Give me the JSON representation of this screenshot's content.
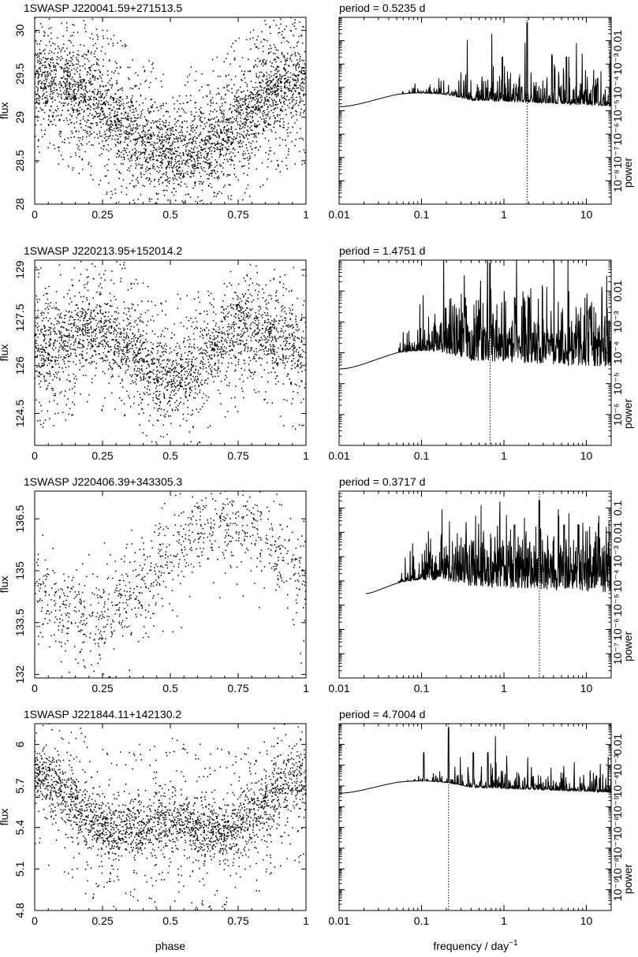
{
  "figure": {
    "xlabel_left": "phase",
    "xlabel_right": "frequency / day",
    "xlabel_right_sup": "−1",
    "period_prefix": "period =",
    "ylabel_left": "flux",
    "ylabel_right": "power"
  },
  "chart_data": [
    {
      "type": "scatter",
      "title": "1SWASP J220041.59+271513.5",
      "xlabel": "",
      "ylabel": "flux",
      "xlim": [
        0,
        1
      ],
      "ylim": [
        28,
        30.15
      ],
      "xticks": [
        0,
        0.25,
        0.5,
        0.75,
        1
      ],
      "xtick_labels": [
        "0",
        "0.25",
        "0.5",
        "0.75",
        "1"
      ],
      "yticks": [
        28,
        28.5,
        29,
        29.5,
        30
      ],
      "ytick_labels": [
        "28",
        "28.5",
        "29",
        "29.5",
        "30"
      ],
      "n_points": 3600,
      "model": {
        "mean": 29.02,
        "amp1": 0.42,
        "phase1": 0.53,
        "amp2": 0.0,
        "scatter": 0.25,
        "outlier_frac": 0.25
      },
      "point_density": "sample"
    },
    {
      "type": "line",
      "title": "",
      "period": "0.5235 d",
      "xscale": "log",
      "yscale": "log",
      "xlim": [
        0.01,
        20
      ],
      "ylim": [
        1e-09,
        0.1
      ],
      "xticks": [
        0.01,
        0.1,
        1,
        10
      ],
      "xtick_labels": [
        "0.01",
        "0.1",
        "1",
        "10"
      ],
      "yticks": [
        1e-08,
        1e-07,
        1e-06,
        1e-05,
        0.0001,
        0.001,
        0.01
      ],
      "ytick_labels": [
        "10⁻⁸",
        "10⁻⁷",
        "10⁻⁶",
        "10⁻⁵",
        "10⁻⁴",
        "10⁻³",
        "0.01"
      ],
      "peak_frequency": 1.91,
      "model": {
        "start": 0.01,
        "low_level": 0.0001,
        "noise_level": 1e-06,
        "peak_level": 0.06,
        "harmonic_level": 0.002
      }
    },
    {
      "type": "scatter",
      "title": "1SWASP J220213.95+152014.2",
      "xlabel": "",
      "ylabel": "flux",
      "xlim": [
        0,
        1
      ],
      "ylim": [
        123.5,
        129.3
      ],
      "xticks": [
        0,
        0.25,
        0.5,
        0.75,
        1
      ],
      "xtick_labels": [
        "0",
        "0.25",
        "0.5",
        "0.75",
        "1"
      ],
      "yticks": [
        124.5,
        126,
        127.5,
        129
      ],
      "ytick_labels": [
        "124.5",
        "126",
        "127.5",
        "129"
      ],
      "n_points": 2700,
      "model": {
        "mean": 126.6,
        "amp1": 0.45,
        "phase1": 0.5,
        "amp2": -0.55,
        "scatter": 0.62,
        "outlier_frac": 0.2
      },
      "point_density": "sample"
    },
    {
      "type": "line",
      "title": "",
      "period": "1.4751 d",
      "xscale": "log",
      "yscale": "log",
      "xlim": [
        0.01,
        20
      ],
      "ylim": [
        1e-07,
        0.1
      ],
      "xticks": [
        0.01,
        0.1,
        1,
        10
      ],
      "xtick_labels": [
        "0.01",
        "0.1",
        "1",
        "10"
      ],
      "yticks": [
        1e-06,
        1e-05,
        0.0001,
        0.001,
        0.01
      ],
      "ytick_labels": [
        "10⁻⁶",
        "10⁻⁵",
        "10⁻⁴",
        "10⁻³",
        "0.01"
      ],
      "peak_frequency": 0.678,
      "model": {
        "start": 0.01,
        "low_level": 0.0002,
        "noise_level": 3e-05,
        "peak_level": 0.08,
        "harmonic_level": 0.006
      }
    },
    {
      "type": "scatter",
      "title": "1SWASP J220406.39+343305.3",
      "xlabel": "",
      "ylabel": "flux",
      "xlim": [
        0,
        1
      ],
      "ylim": [
        131.9,
        137.3
      ],
      "xticks": [
        0,
        0.25,
        0.5,
        0.75,
        1
      ],
      "xtick_labels": [
        "0",
        "0.25",
        "0.5",
        "0.75",
        "1"
      ],
      "yticks": [
        132,
        133.5,
        135,
        136.5
      ],
      "ytick_labels": [
        "132",
        "133.5",
        "135",
        "136.5"
      ],
      "n_points": 1000,
      "model": {
        "mean": 135.0,
        "amp1": 1.4,
        "phase1": 0.2,
        "amp2": 0.0,
        "scatter": 0.65,
        "outlier_frac": 0.12
      },
      "point_density": "sample"
    },
    {
      "type": "line",
      "title": "",
      "period": "0.3717 d",
      "xscale": "log",
      "yscale": "log",
      "xlim": [
        0.01,
        20
      ],
      "ylim": [
        1e-08,
        0.5
      ],
      "xticks": [
        0.01,
        0.1,
        1,
        10
      ],
      "xtick_labels": [
        "0.01",
        "0.1",
        "1",
        "10"
      ],
      "yticks": [
        1e-07,
        1e-06,
        1e-05,
        0.0001,
        0.001,
        0.01,
        0.1
      ],
      "ytick_labels": [
        "10⁻⁷",
        "10⁻⁶",
        "10⁻⁵",
        "10⁻⁴",
        "10⁻³",
        "0.01",
        "0.1"
      ],
      "peak_frequency": 2.69,
      "model": {
        "start": 0.021,
        "low_level": 0.0002,
        "noise_level": 5e-05,
        "peak_level": 0.2,
        "harmonic_level": 0.02
      }
    },
    {
      "type": "scatter",
      "title": "1SWASP J221844.11+142130.2",
      "xlabel": "",
      "ylabel": "flux",
      "xlim": [
        0,
        1
      ],
      "ylim": [
        4.8,
        6.15
      ],
      "xticks": [
        0,
        0.25,
        0.5,
        0.75,
        1
      ],
      "xtick_labels": [
        "0",
        "0.25",
        "0.5",
        "0.75",
        "1"
      ],
      "yticks": [
        4.8,
        5.1,
        5.4,
        5.7,
        6
      ],
      "ytick_labels": [
        "4.8",
        "5.1",
        "5.4",
        "5.7",
        "6"
      ],
      "n_points": 2600,
      "model": {
        "mean": 5.5,
        "amp1": 0.16,
        "phase1": 0.5,
        "amp2": 0.1,
        "scatter": 0.11,
        "outlier_frac": 0.22
      },
      "point_density": "sample"
    },
    {
      "type": "line",
      "title": "",
      "period": "4.7004 d",
      "xscale": "log",
      "yscale": "log",
      "xlim": [
        0.01,
        20
      ],
      "ylim": [
        1e-10,
        0.1
      ],
      "xticks": [
        0.01,
        0.1,
        1,
        10
      ],
      "xtick_labels": [
        "0.01",
        "0.1",
        "1",
        "10"
      ],
      "yticks": [
        1e-09,
        1e-08,
        1e-07,
        1e-06,
        1e-05,
        0.0001,
        0.001,
        0.01
      ],
      "ytick_labels": [
        "10⁻⁹",
        "10⁻⁸",
        "10⁻⁷",
        "10⁻⁶",
        "10⁻⁵",
        "10⁻⁴",
        "10⁻³",
        "0.01"
      ],
      "peak_frequency": 0.2127,
      "model": {
        "start": 0.01,
        "low_level": 0.0003,
        "noise_level": 2e-06,
        "peak_level": 0.06,
        "harmonic_level": 0.004
      }
    }
  ]
}
